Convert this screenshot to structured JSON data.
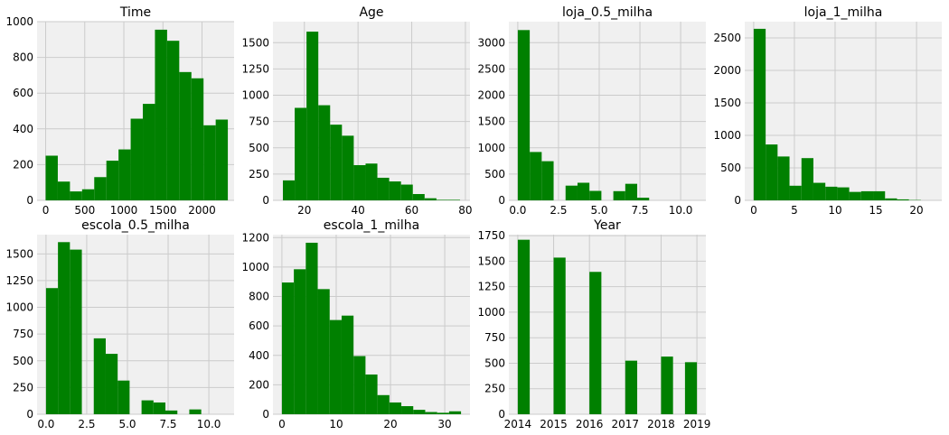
{
  "style": {
    "bar_color": "#008000",
    "panel_color": "#f0f0f0",
    "grid_color": "#cbcbcb"
  },
  "chart_data": [
    {
      "type": "bar",
      "title": "Time",
      "grid": true,
      "xlim": [
        -110,
        2410
      ],
      "ylim": [
        0,
        1000
      ],
      "xticks": [
        0,
        500,
        1000,
        1500,
        2000
      ],
      "xtick_labels": [
        "0",
        "500",
        "1000",
        "1500",
        "2000"
      ],
      "yticks": [
        0,
        200,
        400,
        600,
        800,
        1000
      ],
      "ytick_labels": [
        "0",
        "200",
        "400",
        "600",
        "800",
        "1000"
      ],
      "bin_edges": [
        0,
        155.3,
        310.7,
        466,
        621.3,
        776.7,
        932,
        1087.3,
        1242.7,
        1398,
        1553.3,
        1708.7,
        1864,
        2019.3,
        2174.7,
        2330
      ],
      "values": [
        250,
        105,
        50,
        62,
        130,
        222,
        285,
        457,
        540,
        955,
        893,
        718,
        683,
        420,
        452
      ]
    },
    {
      "type": "bar",
      "title": "Age",
      "grid": true,
      "xlim": [
        8.3,
        81.7
      ],
      "ylim": [
        0,
        1700
      ],
      "xticks": [
        20,
        40,
        60,
        80
      ],
      "xtick_labels": [
        "20",
        "40",
        "60",
        "80"
      ],
      "yticks": [
        0,
        250,
        500,
        750,
        1000,
        1250,
        1500
      ],
      "ytick_labels": [
        "0",
        "250",
        "500",
        "750",
        "1000",
        "1250",
        "1500"
      ],
      "bin_edges": [
        12,
        16.4,
        20.8,
        25.2,
        29.6,
        34,
        38.4,
        42.8,
        47.2,
        51.6,
        56,
        60.4,
        64.8,
        69.2,
        73.6,
        78
      ],
      "values": [
        190,
        880,
        1605,
        905,
        720,
        615,
        335,
        350,
        215,
        180,
        150,
        60,
        20,
        5,
        5
      ]
    },
    {
      "type": "bar",
      "title": "loja_0.5_milha",
      "grid": true,
      "xlim": [
        -0.55,
        11.55
      ],
      "ylim": [
        0,
        3400
      ],
      "xticks": [
        0,
        2.5,
        5,
        7.5,
        10
      ],
      "xtick_labels": [
        "0.0",
        "2.5",
        "5.0",
        "7.5",
        "10.0"
      ],
      "yticks": [
        0,
        500,
        1000,
        1500,
        2000,
        2500,
        3000
      ],
      "ytick_labels": [
        "0",
        "500",
        "1000",
        "1500",
        "2000",
        "2500",
        "3000"
      ],
      "bin_edges": [
        0,
        0.733,
        1.467,
        2.2,
        2.933,
        3.667,
        4.4,
        5.133,
        5.867,
        6.6,
        7.333,
        8.067,
        8.8,
        9.533,
        10.267,
        11
      ],
      "values": [
        3240,
        920,
        745,
        0,
        280,
        335,
        180,
        0,
        175,
        315,
        50,
        0,
        0,
        0,
        0
      ]
    },
    {
      "type": "bar",
      "title": "loja_1_milha",
      "grid": true,
      "xlim": [
        -1.1,
        23.1
      ],
      "ylim": [
        0,
        2750
      ],
      "xticks": [
        0,
        5,
        10,
        15,
        20
      ],
      "xtick_labels": [
        "0",
        "5",
        "10",
        "15",
        "20"
      ],
      "yticks": [
        0,
        500,
        1000,
        1500,
        2000,
        2500
      ],
      "ytick_labels": [
        "0",
        "500",
        "1000",
        "1500",
        "2000",
        "2500"
      ],
      "bin_edges": [
        0,
        1.467,
        2.933,
        4.4,
        5.867,
        7.333,
        8.8,
        10.267,
        11.733,
        13.2,
        14.667,
        16.133,
        17.6,
        19.067,
        20.533,
        22
      ],
      "values": [
        2640,
        860,
        675,
        225,
        650,
        270,
        210,
        200,
        130,
        140,
        140,
        30,
        15,
        5,
        0
      ]
    },
    {
      "type": "bar",
      "title": "escola_0.5_milha",
      "grid": true,
      "xlim": [
        -0.55,
        11.55
      ],
      "ylim": [
        0,
        1680
      ],
      "xticks": [
        0,
        2.5,
        5,
        7.5,
        10
      ],
      "xtick_labels": [
        "0.0",
        "2.5",
        "5.0",
        "7.5",
        "10.0"
      ],
      "yticks": [
        0,
        250,
        500,
        750,
        1000,
        1250,
        1500
      ],
      "ytick_labels": [
        "0",
        "250",
        "500",
        "750",
        "1000",
        "1250",
        "1500"
      ],
      "bin_edges": [
        0,
        0.733,
        1.467,
        2.2,
        2.933,
        3.667,
        4.4,
        5.133,
        5.867,
        6.6,
        7.333,
        8.067,
        8.8,
        9.533,
        10.267,
        11
      ],
      "values": [
        1180,
        1610,
        1540,
        0,
        710,
        565,
        315,
        0,
        130,
        110,
        35,
        0,
        45,
        0,
        0
      ]
    },
    {
      "type": "bar",
      "title": "escola_1_milha",
      "grid": true,
      "xlim": [
        -1.65,
        34.65
      ],
      "ylim": [
        0,
        1220
      ],
      "xticks": [
        0,
        10,
        20,
        30
      ],
      "xtick_labels": [
        "0",
        "10",
        "20",
        "30"
      ],
      "yticks": [
        0,
        200,
        400,
        600,
        800,
        1000,
        1200
      ],
      "ytick_labels": [
        "0",
        "200",
        "400",
        "600",
        "800",
        "1000",
        "1200"
      ],
      "bin_edges": [
        0,
        2.2,
        4.4,
        6.6,
        8.8,
        11,
        13.2,
        15.4,
        17.6,
        19.8,
        22,
        24.2,
        26.4,
        28.6,
        30.8,
        33
      ],
      "values": [
        895,
        985,
        1165,
        850,
        640,
        670,
        395,
        270,
        130,
        80,
        55,
        30,
        15,
        10,
        20
      ]
    },
    {
      "type": "bar",
      "title": "Year",
      "grid": true,
      "xlim": [
        2013.75,
        2019.25
      ],
      "ylim": [
        0,
        1760
      ],
      "xticks": [
        2014,
        2015,
        2016,
        2017,
        2018,
        2019
      ],
      "xtick_labels": [
        "2014",
        "2015",
        "2016",
        "2017",
        "2018",
        "2019"
      ],
      "yticks": [
        0,
        250,
        500,
        750,
        1000,
        1250,
        1500,
        1750
      ],
      "ytick_labels": [
        "0",
        "250",
        "500",
        "750",
        "1000",
        "1250",
        "1500",
        "1750"
      ],
      "bin_edges": [
        2014,
        2014.333,
        2014.667,
        2015,
        2015.333,
        2015.667,
        2016,
        2016.333,
        2016.667,
        2017,
        2017.333,
        2017.667,
        2018,
        2018.333,
        2018.667,
        2019
      ],
      "values": [
        1710,
        0,
        0,
        1535,
        0,
        0,
        1395,
        0,
        0,
        525,
        0,
        0,
        565,
        0,
        510
      ]
    }
  ]
}
